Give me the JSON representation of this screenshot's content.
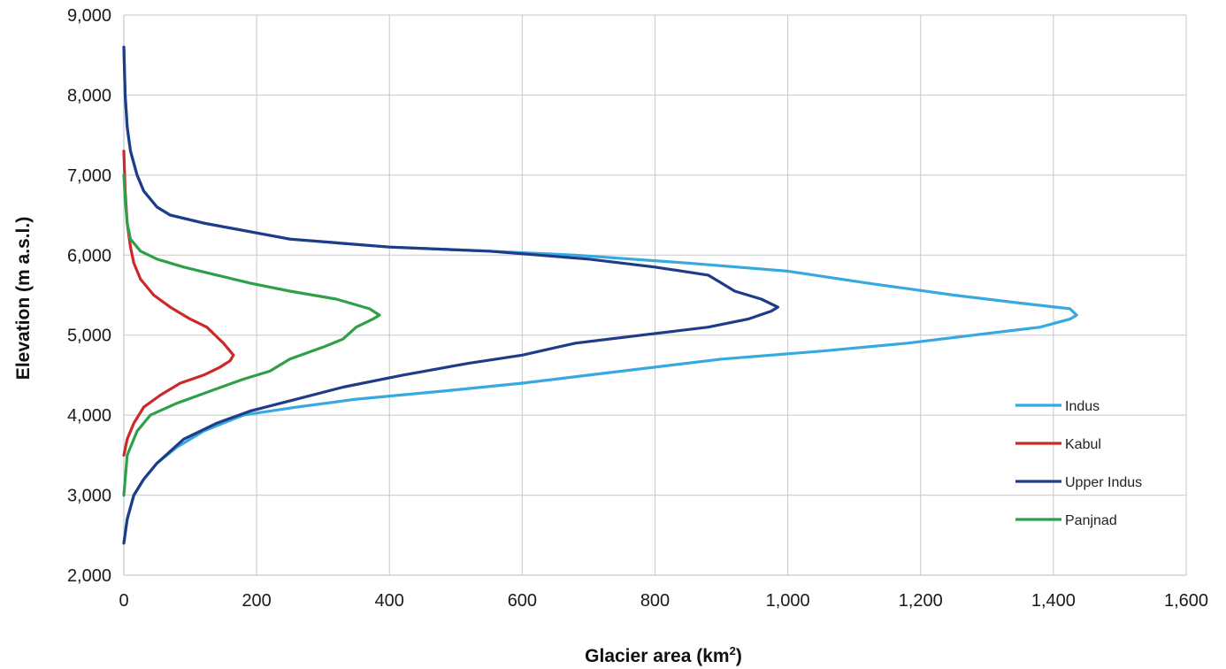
{
  "chart_data": {
    "type": "line",
    "title": "",
    "xlabel": "Glacier area (km",
    "xlabel_sup": "2",
    "xlabel_end": ")",
    "ylabel": "Elevation (m a.s.l.)",
    "xlim": [
      0,
      1600
    ],
    "ylim": [
      2000,
      9000
    ],
    "x_ticks": [
      0,
      200,
      400,
      600,
      800,
      1000,
      1200,
      1400,
      1600
    ],
    "x_tick_labels": [
      "0",
      "200",
      "400",
      "600",
      "800",
      "1,000",
      "1,200",
      "1,400",
      "1,600"
    ],
    "y_ticks": [
      2000,
      3000,
      4000,
      5000,
      6000,
      7000,
      8000,
      9000
    ],
    "y_tick_labels": [
      "2,000",
      "3,000",
      "4,000",
      "5,000",
      "6,000",
      "7,000",
      "8,000",
      "9,000"
    ],
    "grid": true,
    "legend_position": "right",
    "series": [
      {
        "name": "Indus",
        "color": "#35a9e0",
        "points": [
          [
            0,
            2400
          ],
          [
            5,
            2700
          ],
          [
            15,
            3000
          ],
          [
            30,
            3200
          ],
          [
            50,
            3400
          ],
          [
            80,
            3600
          ],
          [
            120,
            3800
          ],
          [
            180,
            4000
          ],
          [
            260,
            4100
          ],
          [
            350,
            4200
          ],
          [
            480,
            4300
          ],
          [
            600,
            4400
          ],
          [
            700,
            4500
          ],
          [
            800,
            4600
          ],
          [
            900,
            4700
          ],
          [
            1050,
            4800
          ],
          [
            1180,
            4900
          ],
          [
            1280,
            5000
          ],
          [
            1380,
            5100
          ],
          [
            1425,
            5200
          ],
          [
            1435,
            5250
          ],
          [
            1425,
            5330
          ],
          [
            1350,
            5400
          ],
          [
            1250,
            5500
          ],
          [
            1120,
            5650
          ],
          [
            1000,
            5800
          ],
          [
            850,
            5900
          ],
          [
            680,
            6000
          ],
          [
            550,
            6050
          ],
          [
            400,
            6100
          ],
          [
            250,
            6200
          ],
          [
            120,
            6400
          ],
          [
            70,
            6500
          ],
          [
            50,
            6600
          ],
          [
            30,
            6800
          ],
          [
            20,
            7000
          ],
          [
            10,
            7300
          ],
          [
            5,
            7600
          ],
          [
            2,
            8000
          ],
          [
            0,
            8600
          ]
        ]
      },
      {
        "name": "Kabul",
        "color": "#cc2a2a",
        "points": [
          [
            0,
            3500
          ],
          [
            5,
            3700
          ],
          [
            15,
            3900
          ],
          [
            30,
            4100
          ],
          [
            55,
            4250
          ],
          [
            85,
            4400
          ],
          [
            120,
            4500
          ],
          [
            145,
            4600
          ],
          [
            160,
            4680
          ],
          [
            165,
            4750
          ],
          [
            150,
            4900
          ],
          [
            125,
            5100
          ],
          [
            100,
            5200
          ],
          [
            70,
            5350
          ],
          [
            45,
            5500
          ],
          [
            25,
            5700
          ],
          [
            15,
            5900
          ],
          [
            10,
            6100
          ],
          [
            5,
            6400
          ],
          [
            2,
            6800
          ],
          [
            0,
            7300
          ]
        ]
      },
      {
        "name": "Upper Indus",
        "color": "#1f3c88",
        "points": [
          [
            0,
            2400
          ],
          [
            5,
            2700
          ],
          [
            15,
            3000
          ],
          [
            30,
            3200
          ],
          [
            50,
            3400
          ],
          [
            90,
            3700
          ],
          [
            140,
            3900
          ],
          [
            190,
            4050
          ],
          [
            260,
            4200
          ],
          [
            330,
            4350
          ],
          [
            420,
            4500
          ],
          [
            520,
            4650
          ],
          [
            600,
            4750
          ],
          [
            680,
            4900
          ],
          [
            780,
            5000
          ],
          [
            880,
            5100
          ],
          [
            940,
            5200
          ],
          [
            975,
            5300
          ],
          [
            985,
            5350
          ],
          [
            960,
            5450
          ],
          [
            920,
            5550
          ],
          [
            900,
            5650
          ],
          [
            880,
            5750
          ],
          [
            800,
            5850
          ],
          [
            700,
            5950
          ],
          [
            550,
            6050
          ],
          [
            400,
            6100
          ],
          [
            250,
            6200
          ],
          [
            120,
            6400
          ],
          [
            70,
            6500
          ],
          [
            50,
            6600
          ],
          [
            30,
            6800
          ],
          [
            20,
            7000
          ],
          [
            10,
            7300
          ],
          [
            5,
            7600
          ],
          [
            2,
            8000
          ],
          [
            0,
            8600
          ]
        ]
      },
      {
        "name": "Panjnad",
        "color": "#2ea04a",
        "points": [
          [
            0,
            3000
          ],
          [
            5,
            3500
          ],
          [
            20,
            3800
          ],
          [
            40,
            4000
          ],
          [
            80,
            4150
          ],
          [
            130,
            4300
          ],
          [
            180,
            4450
          ],
          [
            220,
            4550
          ],
          [
            250,
            4700
          ],
          [
            300,
            4850
          ],
          [
            330,
            4950
          ],
          [
            350,
            5100
          ],
          [
            375,
            5200
          ],
          [
            385,
            5250
          ],
          [
            370,
            5330
          ],
          [
            320,
            5450
          ],
          [
            250,
            5550
          ],
          [
            190,
            5650
          ],
          [
            140,
            5750
          ],
          [
            90,
            5850
          ],
          [
            50,
            5950
          ],
          [
            25,
            6050
          ],
          [
            10,
            6200
          ],
          [
            5,
            6400
          ],
          [
            2,
            6700
          ],
          [
            0,
            7000
          ]
        ]
      }
    ]
  }
}
